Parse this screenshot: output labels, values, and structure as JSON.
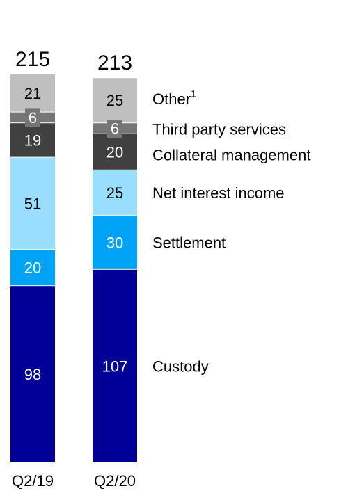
{
  "chart_data": {
    "type": "bar",
    "stacked": true,
    "categories": [
      "Q2/19",
      "Q2/20"
    ],
    "totals": [
      "215",
      "213"
    ],
    "series": [
      {
        "name": "Custody",
        "values": [
          98,
          107
        ],
        "color": "#000099",
        "label_color": "#ffffff"
      },
      {
        "name": "Settlement",
        "values": [
          20,
          30
        ],
        "color": "#00a3f5",
        "label_color": "#ffffff"
      },
      {
        "name": "Net interest income",
        "values": [
          51,
          25
        ],
        "color": "#99ddff",
        "label_color": "#000000"
      },
      {
        "name": "Collateral management",
        "values": [
          19,
          20
        ],
        "color": "#404040",
        "label_color": "#ffffff"
      },
      {
        "name": "Third party services",
        "values": [
          6,
          6
        ],
        "color": "#767676",
        "label_color": "#ffffff"
      },
      {
        "name": "Other",
        "values": [
          21,
          25
        ],
        "color": "#bfbfbf",
        "label_color": "#000000",
        "superscript": "1"
      }
    ],
    "legend_placement": "right",
    "grid": false,
    "xlabel": "",
    "ylabel": ""
  }
}
